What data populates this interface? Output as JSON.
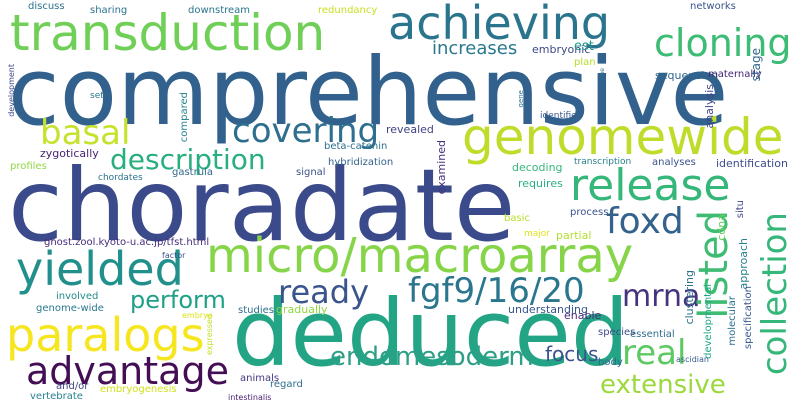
{
  "words": [
    {
      "text": "comprehensive",
      "color": "#31618c"
    },
    {
      "text": "choradate",
      "color": "#3b4a8a"
    },
    {
      "text": "deduced",
      "color": "#23a585"
    },
    {
      "text": "transduction",
      "color": "#6fcf57"
    },
    {
      "text": "achieving",
      "color": "#2b748e"
    },
    {
      "text": "genomewide",
      "color": "#bfdc2b"
    },
    {
      "text": "release",
      "color": "#35b779"
    },
    {
      "text": "micro/macroarray",
      "color": "#86d549"
    },
    {
      "text": "yielded",
      "color": "#21908c"
    },
    {
      "text": "paralogs",
      "color": "#f6e620"
    },
    {
      "text": "advantage",
      "color": "#440e54"
    },
    {
      "text": "cloning",
      "color": "#3cbc74"
    },
    {
      "text": "basal",
      "color": "#c6e22d"
    },
    {
      "text": "covering",
      "color": "#2e6e8e"
    },
    {
      "text": "description",
      "color": "#29af7f"
    },
    {
      "text": "foxd",
      "color": "#33628d"
    },
    {
      "text": "fgf9/16/20",
      "color": "#2a768e"
    },
    {
      "text": "ready",
      "color": "#3a548c"
    },
    {
      "text": "perform",
      "color": "#1fa187"
    },
    {
      "text": "mrna",
      "color": "#46337e"
    },
    {
      "text": "real",
      "color": "#5ec962"
    },
    {
      "text": "endomesoderm",
      "color": "#2e9f87"
    },
    {
      "text": "extensive",
      "color": "#9bd93c"
    },
    {
      "text": "focus",
      "color": "#3b528b"
    },
    {
      "text": "listed",
      "color": "#3fbc73"
    },
    {
      "text": "collection",
      "color": "#35b779"
    },
    {
      "text": "increases",
      "color": "#2a788e"
    },
    {
      "text": "embryonic",
      "color": "#3e4989"
    },
    {
      "text": "sequencing",
      "color": "#30688e"
    },
    {
      "text": "maternally",
      "color": "#482677"
    },
    {
      "text": "stage",
      "color": "#31678e"
    },
    {
      "text": "plan",
      "color": "#b5de2b"
    },
    {
      "text": "est",
      "color": "#1f968b"
    },
    {
      "text": "analysis",
      "color": "#404688"
    },
    {
      "text": "cdna",
      "color": "#6ccd5a"
    },
    {
      "text": "identification",
      "color": "#3d4d8a"
    },
    {
      "text": "analyses",
      "color": "#3b528b"
    },
    {
      "text": "revealed",
      "color": "#404387"
    },
    {
      "text": "identified",
      "color": "#38598c"
    },
    {
      "text": "hybridization",
      "color": "#33638d"
    },
    {
      "text": "beta-catenin",
      "color": "#2c718e"
    },
    {
      "text": "examined",
      "color": "#46307e"
    },
    {
      "text": "decoding",
      "color": "#34b679"
    },
    {
      "text": "requires",
      "color": "#2ab07f"
    },
    {
      "text": "transcription",
      "color": "#26818e"
    },
    {
      "text": "process",
      "color": "#3b528b"
    },
    {
      "text": "basic",
      "color": "#b8de29"
    },
    {
      "text": "major",
      "color": "#e2e418"
    },
    {
      "text": "partial",
      "color": "#b2dd2d"
    },
    {
      "text": "situ",
      "color": "#3f4889"
    },
    {
      "text": "approach",
      "color": "#27808e"
    },
    {
      "text": "developmental",
      "color": "#22a884"
    },
    {
      "text": "clustering",
      "color": "#2c718e"
    },
    {
      "text": "molecular",
      "color": "#2d708e"
    },
    {
      "text": "specification",
      "color": "#38598c"
    },
    {
      "text": "enable",
      "color": "#472a7a"
    },
    {
      "text": "essential",
      "color": "#2e6f8e"
    },
    {
      "text": "species",
      "color": "#3e4c8a"
    },
    {
      "text": "understanding",
      "color": "#39568c"
    },
    {
      "text": "gradually",
      "color": "#90d743"
    },
    {
      "text": "studies",
      "color": "#2d718e"
    },
    {
      "text": "body",
      "color": "#31688e"
    },
    {
      "text": "regard",
      "color": "#2e6e8e"
    },
    {
      "text": "animals",
      "color": "#443983"
    },
    {
      "text": "ascidian",
      "color": "#355e8d"
    },
    {
      "text": "intestinalis",
      "color": "#481f70"
    },
    {
      "text": "embryogenesis",
      "color": "#d0e11c"
    },
    {
      "text": "vertebrate",
      "color": "#26828e"
    },
    {
      "text": "and/or",
      "color": "#414487"
    },
    {
      "text": "expressed",
      "color": "#c2df23"
    },
    {
      "text": "embryo",
      "color": "#dde318"
    },
    {
      "text": "involved",
      "color": "#238a8d"
    },
    {
      "text": "genome-wide",
      "color": "#2a788e"
    },
    {
      "text": "factor",
      "color": "#3b528b"
    },
    {
      "text": "ghost.zool.kyoto-u.ac.jp/tfst.html",
      "color": "#472d7b"
    },
    {
      "text": "gastrula",
      "color": "#31688e"
    },
    {
      "text": "chordates",
      "color": "#2c728e"
    },
    {
      "text": "signal",
      "color": "#3b518b"
    },
    {
      "text": "zygotically",
      "color": "#482475"
    },
    {
      "text": "profiles",
      "color": "#8fd744"
    },
    {
      "text": "compared",
      "color": "#26828e"
    },
    {
      "text": "set",
      "color": "#2a788e"
    },
    {
      "text": "development",
      "color": "#3e4a89"
    },
    {
      "text": "discuss",
      "color": "#2c728e"
    },
    {
      "text": "sharing",
      "color": "#2c728e"
    },
    {
      "text": "downstream",
      "color": "#2a768e"
    },
    {
      "text": "redundancy",
      "color": "#c8e020"
    },
    {
      "text": "networks",
      "color": "#3a538b"
    },
    {
      "text": "gene",
      "color": "#2c738e"
    },
    {
      "text": "clone",
      "color": "#2d708e"
    }
  ]
}
